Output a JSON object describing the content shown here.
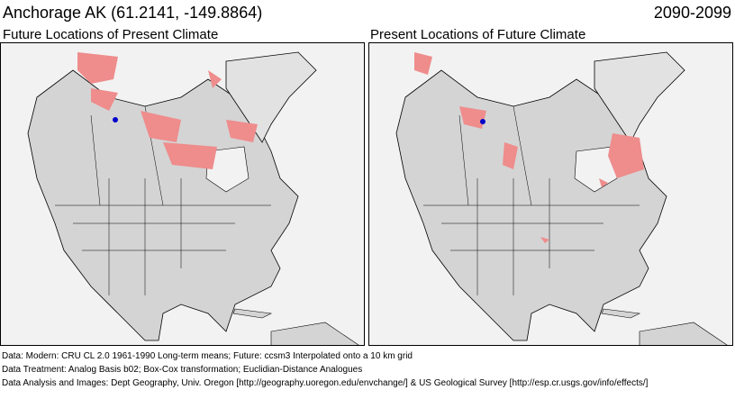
{
  "header": {
    "location": "Anchorage AK  (61.2141, -149.8864)",
    "period": "2090-2099"
  },
  "panels": [
    {
      "title": "Future Locations of Present Climate"
    },
    {
      "title": "Present Locations of Future Climate"
    }
  ],
  "colors": {
    "analog": "#ef8c8c",
    "site": "#0000cc",
    "land": "#d4d4d4",
    "ocean": "#f2f2f2"
  },
  "footer": {
    "line1": "Data:  Modern: CRU CL 2.0 1961-1990 Long-term means; Future: ccsm3 Interpolated onto a 10 km grid",
    "line2": "Data Treatment:  Analog Basis b02; Box-Cox transformation; Euclidian-Distance Analogues",
    "line3": "Data Analysis and Images:  Dept Geography, Univ. Oregon [http://geography.uoregon.edu/envchange/] & US Geological Survey [http://esp.cr.usgs.gov/info/effects/]"
  }
}
